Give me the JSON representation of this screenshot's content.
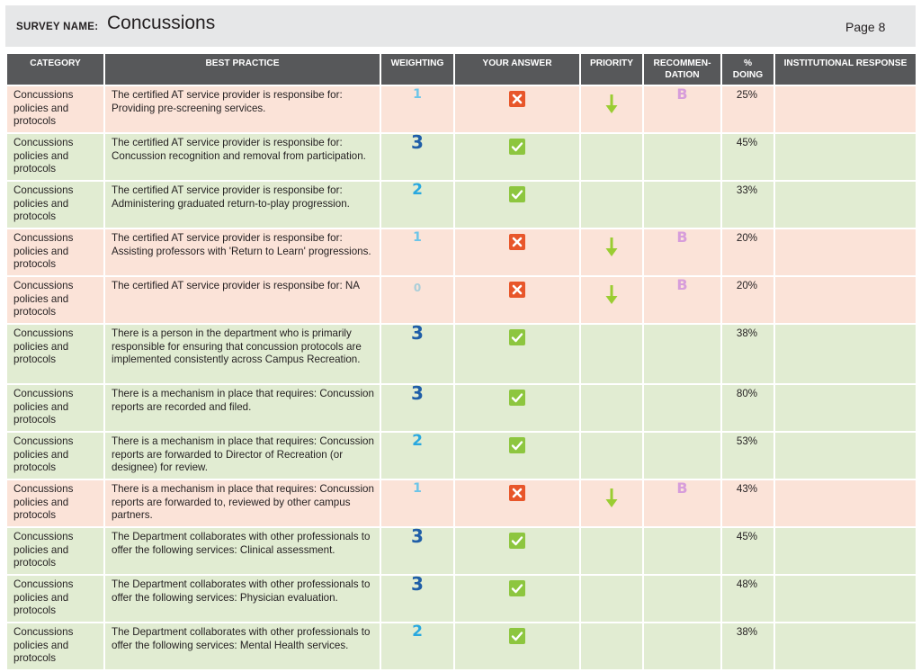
{
  "header": {
    "survey_label": "SURVEY NAME:",
    "survey_name": "Concussions",
    "page": "Page 8"
  },
  "columns": {
    "category": "CATEGORY",
    "best_practice": "BEST PRACTICE",
    "weighting": "WEIGHTING",
    "your_answer": "YOUR ANSWER",
    "priority": "PRIORITY",
    "recommendation_line1": "RECOMMEN-",
    "recommendation_line2": "DATION",
    "pct_line1": "%",
    "pct_line2": "DOING",
    "institutional_response": "INSTITUTIONAL RESPONSE"
  },
  "colors": {
    "header_bg": "#57585a",
    "row_no": "#fbe3d8",
    "row_yes": "#e1ecd2",
    "check_green": "#8dc63f",
    "cross_red": "#e8562a",
    "arrow_green": "#9acd32",
    "rec_purple": "#d79ddb"
  },
  "rows": [
    {
      "category": "Concussions policies and protocols",
      "practice": "The certified AT service provider is responsibe for: Providing pre-screening services.",
      "weighting": "1",
      "answer": "no",
      "answer_icon": "cross-icon",
      "priority": "down-arrow-icon",
      "recommendation": "B",
      "pct": "25%",
      "response": ""
    },
    {
      "category": "Concussions policies and protocols",
      "practice": "The certified AT service provider is responsibe for: Concussion recognition and removal from participation.",
      "weighting": "3",
      "answer": "yes",
      "answer_icon": "check-icon",
      "priority": "",
      "recommendation": "",
      "pct": "45%",
      "response": ""
    },
    {
      "category": "Concussions policies and protocols",
      "practice": "The certified AT service provider is responsibe for: Administering graduated return-to-play progression.",
      "weighting": "2",
      "answer": "yes",
      "answer_icon": "check-icon",
      "priority": "",
      "recommendation": "",
      "pct": "33%",
      "response": ""
    },
    {
      "category": "Concussions policies and protocols",
      "practice": "The certified AT service provider is responsibe for: Assisting professors with 'Return to Learn' progressions.",
      "weighting": "1",
      "answer": "no",
      "answer_icon": "cross-icon",
      "priority": "down-arrow-icon",
      "recommendation": "B",
      "pct": "20%",
      "response": ""
    },
    {
      "category": "Concussions policies and protocols",
      "practice": "The certified AT service provider is responsibe for: NA",
      "weighting": "0",
      "answer": "no",
      "answer_icon": "cross-icon",
      "priority": "down-arrow-icon",
      "recommendation": "B",
      "pct": "20%",
      "response": ""
    },
    {
      "category": "Concussions policies and protocols",
      "practice": "There is a person in the department who is primarily responsible for ensuring that concussion protocols are implemented consistently across Campus Recreation.",
      "weighting": "3",
      "answer": "yes",
      "answer_icon": "check-icon",
      "priority": "",
      "recommendation": "",
      "pct": "38%",
      "response": ""
    },
    {
      "category": "Concussions policies and protocols",
      "practice": "There is a mechanism in place that requires: Concussion reports are recorded and filed.",
      "weighting": "3",
      "answer": "yes",
      "answer_icon": "check-icon",
      "priority": "",
      "recommendation": "",
      "pct": "80%",
      "response": ""
    },
    {
      "category": "Concussions policies and protocols",
      "practice": "There is a mechanism in place that requires: Concussion reports are forwarded to Director of Recreation (or designee) for review.",
      "weighting": "2",
      "answer": "yes",
      "answer_icon": "check-icon",
      "priority": "",
      "recommendation": "",
      "pct": "53%",
      "response": ""
    },
    {
      "category": "Concussions policies and protocols",
      "practice": "There is a mechanism in place that requires: Concussion reports are forwarded to, reviewed by other campus partners.",
      "weighting": "1",
      "answer": "no",
      "answer_icon": "cross-icon",
      "priority": "down-arrow-icon",
      "recommendation": "B",
      "pct": "43%",
      "response": ""
    },
    {
      "category": "Concussions policies and protocols",
      "practice": "The Department collaborates with other professionals to offer the following services: Clinical assessment.",
      "weighting": "3",
      "answer": "yes",
      "answer_icon": "check-icon",
      "priority": "",
      "recommendation": "",
      "pct": "45%",
      "response": ""
    },
    {
      "category": "Concussions policies and protocols",
      "practice": "The Department collaborates with other professionals to offer the following services: Physician evaluation.",
      "weighting": "3",
      "answer": "yes",
      "answer_icon": "check-icon",
      "priority": "",
      "recommendation": "",
      "pct": "48%",
      "response": ""
    },
    {
      "category": "Concussions policies and protocols",
      "practice": "The Department collaborates with other professionals to offer the following services: Mental Health services.",
      "weighting": "2",
      "answer": "yes",
      "answer_icon": "check-icon",
      "priority": "",
      "recommendation": "",
      "pct": "38%",
      "response": ""
    }
  ]
}
